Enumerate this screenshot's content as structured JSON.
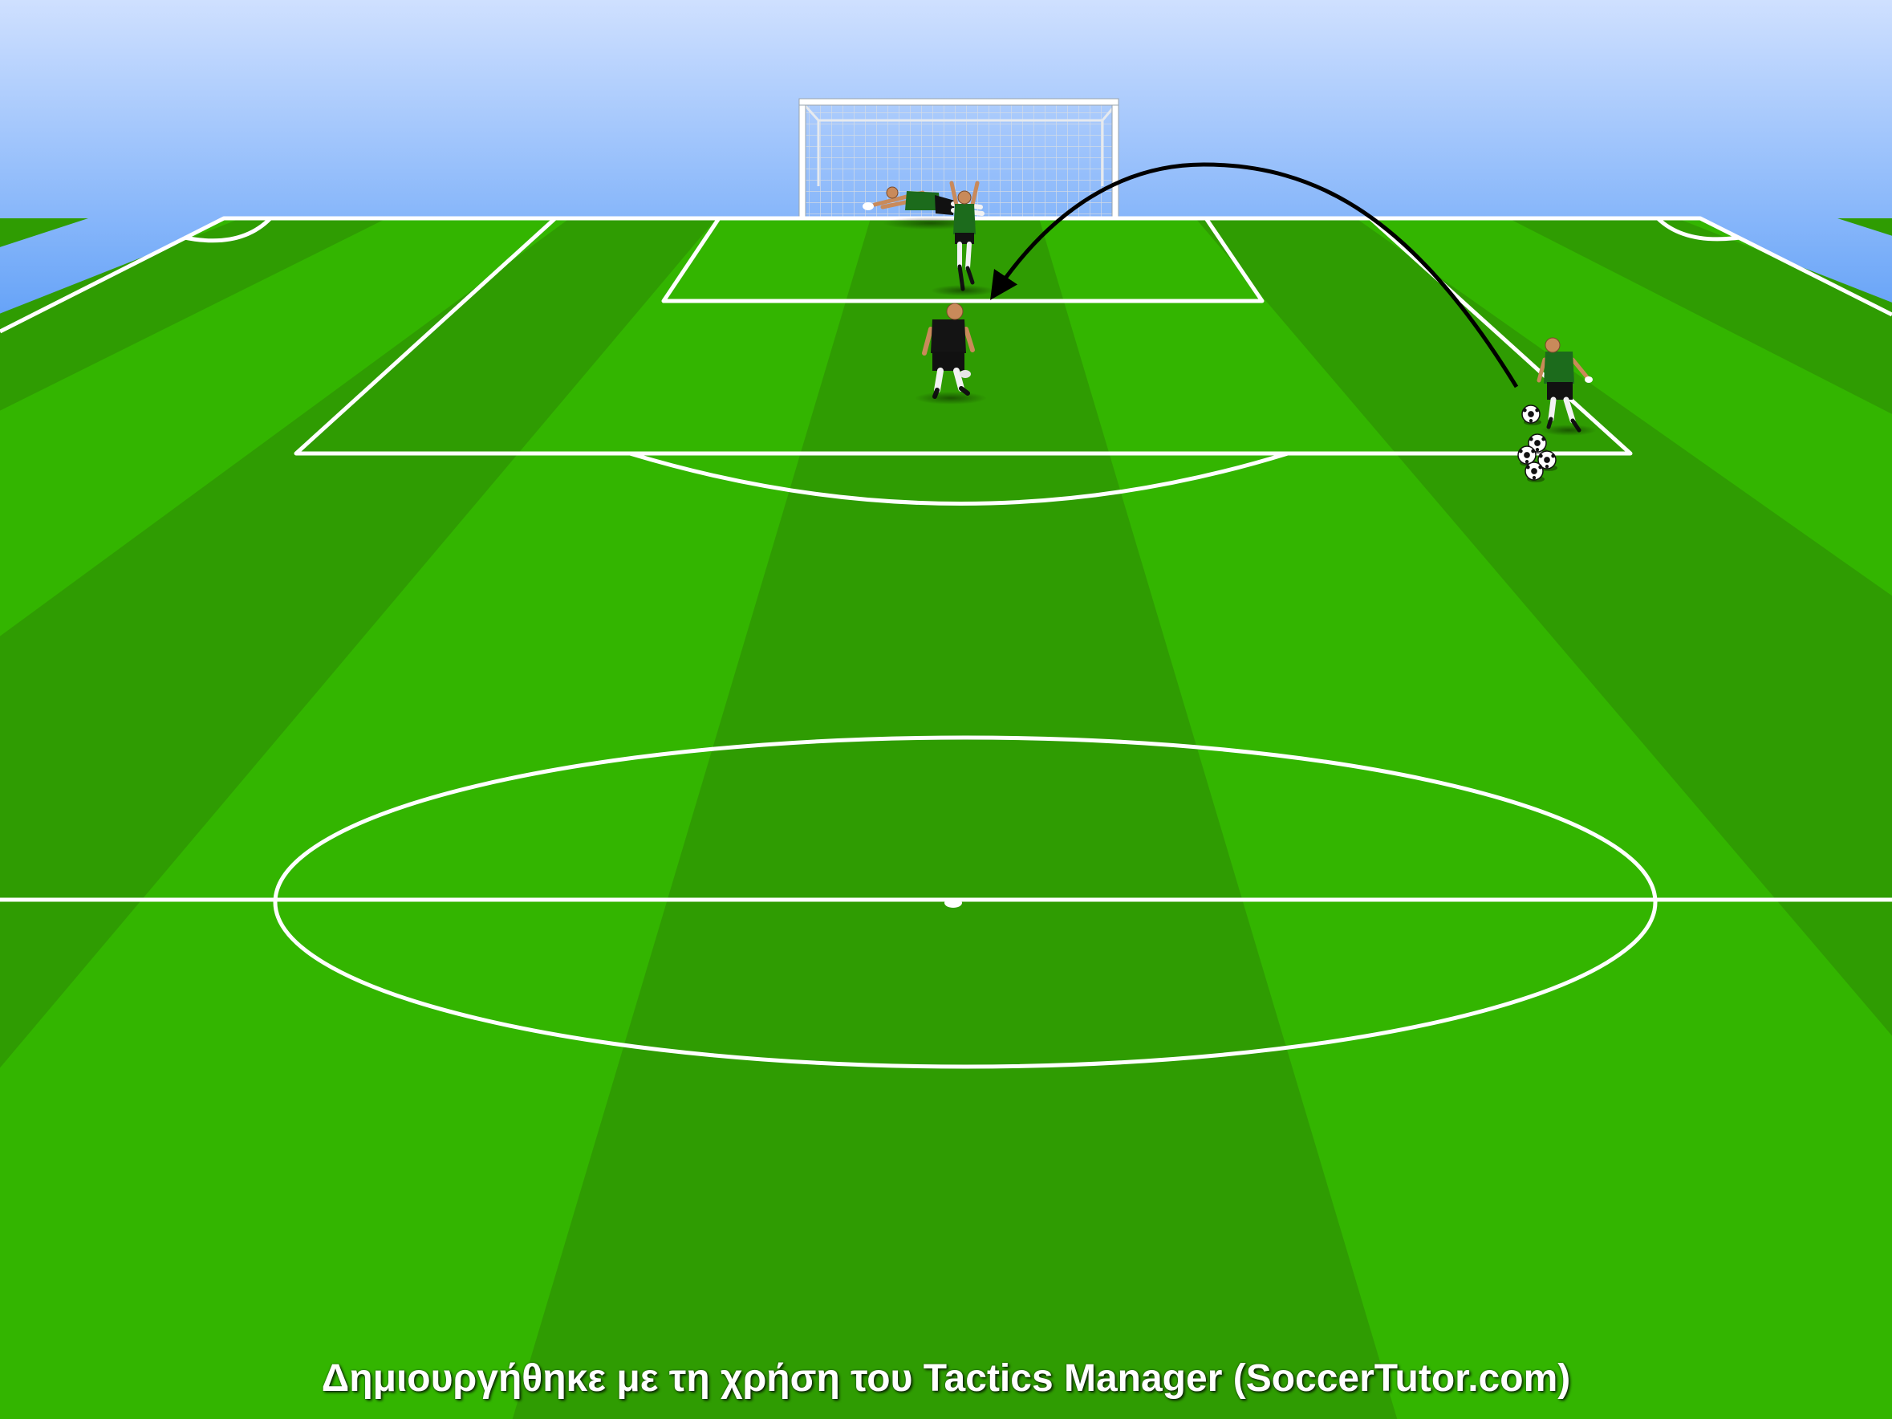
{
  "credit": "Δημιουργήθηκε με τη χρήση του Tactics Manager (SoccerTutor.com)",
  "colors": {
    "sky_top": "#cfe0ff",
    "sky_bottom": "#5f9ff7",
    "grass_light": "#33b500",
    "grass_dark": "#2f9c02",
    "lines": "#ffffff",
    "kit_shirt": "#1c6b1c",
    "kit_shorts": "#111111",
    "pass_arrow": "#000000"
  },
  "scene": {
    "players": [
      {
        "role": "goalkeeper",
        "state": "diving",
        "kit": "green"
      },
      {
        "role": "defender",
        "state": "jumping",
        "kit": "green"
      },
      {
        "role": "attacker",
        "state": "running",
        "kit": "black"
      },
      {
        "role": "server",
        "state": "crossing",
        "kit": "green"
      }
    ],
    "balls_in_pile": 4,
    "passes": [
      {
        "type": "lofted-cross",
        "from": "server",
        "to": "attacker"
      }
    ]
  }
}
